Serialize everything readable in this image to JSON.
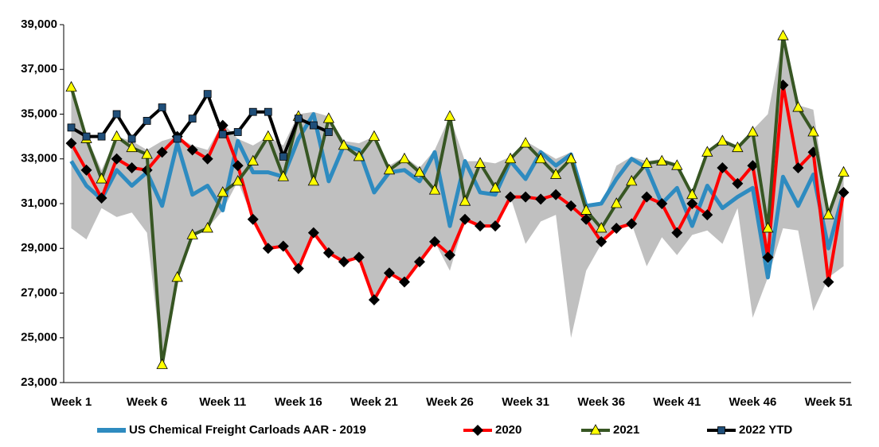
{
  "chart_data": {
    "type": "line",
    "legend": "bottom",
    "categories": [
      "Week 1",
      null,
      null,
      null,
      null,
      "Week 6",
      null,
      null,
      null,
      null,
      "Week 11",
      null,
      null,
      null,
      null,
      "Week 16",
      null,
      null,
      null,
      null,
      "Week 21",
      null,
      null,
      null,
      null,
      "Week 26",
      null,
      null,
      null,
      null,
      "Week 31",
      null,
      null,
      null,
      null,
      "Week 36",
      null,
      null,
      null,
      null,
      "Week 41",
      null,
      null,
      null,
      null,
      "Week 46",
      null,
      null,
      null,
      null,
      "Week 51",
      null
    ],
    "ylim": [
      23000,
      39000
    ],
    "yticks": [
      {
        "value": 23000,
        "label": "23,000"
      },
      {
        "value": 25000,
        "label": "25,000"
      },
      {
        "value": 27000,
        "label": "27,000"
      },
      {
        "value": 29000,
        "label": "29,000"
      },
      {
        "value": 31000,
        "label": "31,000"
      },
      {
        "value": 33000,
        "label": "33,000"
      },
      {
        "value": 35000,
        "label": "35,000"
      },
      {
        "value": 37000,
        "label": "37,000"
      },
      {
        "value": 39000,
        "label": "39,000"
      }
    ],
    "band": {
      "color": "#c0c0c0",
      "high": [
        36200,
        34000,
        32500,
        34000,
        33800,
        33400,
        33800,
        34000,
        33600,
        33400,
        34600,
        33900,
        33600,
        34000,
        33600,
        35000,
        35100,
        34900,
        33800,
        33700,
        34000,
        32700,
        33100,
        32600,
        33400,
        34900,
        32900,
        32900,
        32800,
        33100,
        33800,
        33400,
        33000,
        33300,
        31000,
        30900,
        32700,
        33100,
        32900,
        33000,
        32800,
        31500,
        33400,
        33900,
        33600,
        34300,
        35000,
        38500,
        35400,
        35200,
        30600,
        32500
      ],
      "low": [
        29900,
        29400,
        30800,
        30400,
        30600,
        29700,
        23800,
        27700,
        29600,
        29900,
        30700,
        32000,
        30300,
        29000,
        29100,
        28100,
        29700,
        28800,
        28400,
        28600,
        26700,
        27900,
        27500,
        28400,
        29300,
        28000,
        30300,
        30000,
        30000,
        31300,
        29200,
        30200,
        30500,
        25000,
        28000,
        29200,
        29900,
        30100,
        28200,
        29500,
        28700,
        29600,
        29800,
        29200,
        30800,
        25900,
        27700,
        29900,
        29800,
        26200,
        27700,
        28200
      ]
    },
    "series": [
      {
        "name": "US Chemical Freight Carloads AAR - 2019",
        "color": "#2e8bc0",
        "values": [
          32900,
          31800,
          31200,
          32500,
          31800,
          32400,
          30900,
          33700,
          31400,
          31800,
          30700,
          33800,
          32400,
          32400,
          32200,
          33900,
          35000,
          32000,
          33600,
          33400,
          31500,
          32400,
          32500,
          32000,
          33300,
          30000,
          32900,
          31500,
          31400,
          32900,
          32100,
          33300,
          32700,
          33200,
          30900,
          31000,
          32100,
          33000,
          32600,
          31000,
          31700,
          30000,
          31800,
          30800,
          31300,
          31700,
          27700,
          32200,
          30900,
          32300,
          29000,
          31500
        ]
      },
      {
        "name": "2020",
        "color": "#ff0000",
        "marker": "diamond",
        "marker_color": "#000000",
        "values": [
          33700,
          32500,
          31250,
          33000,
          32600,
          32500,
          33300,
          34000,
          33400,
          33000,
          34500,
          32700,
          30300,
          29000,
          29100,
          28100,
          29700,
          28800,
          28400,
          28600,
          26700,
          27900,
          27500,
          28400,
          29300,
          28700,
          30300,
          30000,
          30000,
          31300,
          31300,
          31200,
          31400,
          30900,
          30300,
          29300,
          29900,
          30100,
          31300,
          31000,
          29700,
          31000,
          30500,
          32600,
          31900,
          32700,
          28600,
          36300,
          32600,
          33300,
          27500,
          31500
        ]
      },
      {
        "name": "2021",
        "color": "#375623",
        "marker": "triangle",
        "marker_color": "#ffff00",
        "values": [
          36200,
          33900,
          32100,
          34000,
          33500,
          33200,
          23800,
          27700,
          29600,
          29900,
          31500,
          32000,
          32900,
          34000,
          32200,
          34900,
          32000,
          34800,
          33600,
          33100,
          34000,
          32500,
          33000,
          32400,
          31600,
          34900,
          31100,
          32800,
          31700,
          33000,
          33700,
          33000,
          32300,
          33000,
          30700,
          29900,
          31000,
          32000,
          32800,
          32900,
          32700,
          31400,
          33300,
          33800,
          33500,
          34200,
          29900,
          38500,
          35300,
          34200,
          30500,
          32400
        ]
      },
      {
        "name": "2022 YTD",
        "color": "#000000",
        "marker": "square",
        "marker_color": "#1f4e79",
        "values": [
          34400,
          34000,
          34000,
          35000,
          33900,
          34700,
          35300,
          33900,
          34800,
          35900,
          34100,
          34200,
          35100,
          35100,
          33100,
          34800,
          34500,
          34200,
          null,
          null,
          null,
          null,
          null,
          null,
          null,
          null,
          null,
          null,
          null,
          null,
          null,
          null,
          null,
          null,
          null,
          null,
          null,
          null,
          null,
          null,
          null,
          null,
          null,
          null,
          null,
          null,
          null,
          null,
          null,
          null,
          null,
          null
        ]
      }
    ]
  }
}
